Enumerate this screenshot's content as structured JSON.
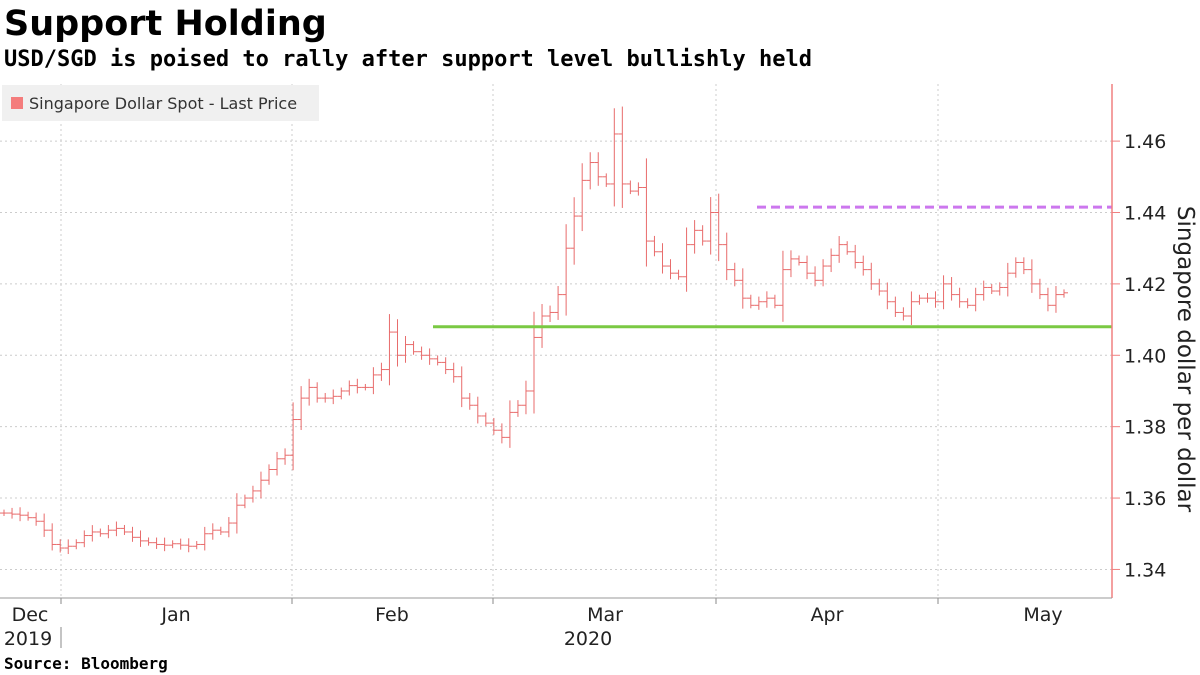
{
  "header": {
    "title": "Support Holding",
    "subtitle": "USD/SGD is poised to rally after support level bullishly held"
  },
  "footer": {
    "source": "Source: Bloomberg"
  },
  "colors": {
    "series": "#e86b6b",
    "legend_swatch": "#f47c7c",
    "support_line": "#7ac943",
    "resistance_line": "#cc77ee",
    "axis": "#f08080",
    "grid": "#cccccc"
  },
  "chart_data": {
    "type": "ohlc",
    "legend": [
      {
        "name": "Singapore Dollar Spot - Last Price",
        "placement": "top-left"
      }
    ],
    "ylabel": "Singapore dollar per dollar",
    "ylim": [
      1.332,
      1.476
    ],
    "y_ticks": [
      1.34,
      1.36,
      1.38,
      1.4,
      1.42,
      1.44,
      1.46
    ],
    "y_tick_labels": [
      "1.34",
      "1.36",
      "1.38",
      "1.40",
      "1.42",
      "1.44",
      "1.46"
    ],
    "x_axis": {
      "month_labels": [
        "Dec",
        "Jan",
        "Feb",
        "Mar",
        "Apr",
        "May"
      ],
      "year_labels": [
        "2019",
        "2020"
      ]
    },
    "grid": true,
    "support_level": 1.408,
    "resistance_level": 1.4415,
    "close_values": [
      1.3558,
      1.3555,
      1.3552,
      1.3545,
      1.3535,
      1.351,
      1.347,
      1.346,
      1.3465,
      1.3475,
      1.3495,
      1.3505,
      1.35,
      1.351,
      1.3515,
      1.3505,
      1.349,
      1.348,
      1.3475,
      1.347,
      1.3468,
      1.3472,
      1.3468,
      1.3465,
      1.347,
      1.35,
      1.351,
      1.3505,
      1.353,
      1.358,
      1.36,
      1.362,
      1.365,
      1.368,
      1.371,
      1.372,
      1.382,
      1.388,
      1.391,
      1.388,
      1.388,
      1.3885,
      1.39,
      1.3915,
      1.391,
      1.391,
      1.3945,
      1.396,
      1.4065,
      1.4,
      1.403,
      1.401,
      1.4,
      1.399,
      1.398,
      1.396,
      1.394,
      1.388,
      1.386,
      1.383,
      1.381,
      1.379,
      1.377,
      1.384,
      1.386,
      1.39,
      1.405,
      1.411,
      1.412,
      1.417,
      1.43,
      1.439,
      1.449,
      1.454,
      1.45,
      1.448,
      1.462,
      1.448,
      1.446,
      1.447,
      1.432,
      1.429,
      1.425,
      1.423,
      1.422,
      1.431,
      1.435,
      1.432,
      1.44,
      1.431,
      1.424,
      1.421,
      1.416,
      1.414,
      1.415,
      1.416,
      1.414,
      1.424,
      1.427,
      1.426,
      1.423,
      1.421,
      1.425,
      1.428,
      1.431,
      1.429,
      1.426,
      1.424,
      1.42,
      1.418,
      1.415,
      1.412,
      1.411,
      1.415,
      1.416,
      1.416,
      1.415,
      1.42,
      1.417,
      1.415,
      1.414,
      1.417,
      1.419,
      1.418,
      1.419,
      1.423,
      1.426,
      1.424,
      1.42,
      1.417,
      1.414,
      1.417,
      1.4175
    ]
  }
}
